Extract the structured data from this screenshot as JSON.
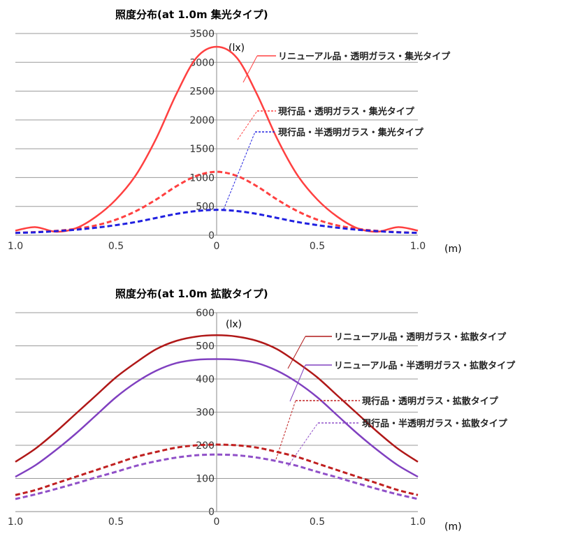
{
  "chart_data": [
    {
      "type": "line",
      "title": "照度分布(at 1.0m 集光タイプ)",
      "y_unit": "(lx)",
      "x_unit": "(m)",
      "x_tick_labels": [
        "1.0",
        "0.5",
        "0",
        "0.5",
        "1.0"
      ],
      "y_tick_labels": [
        "0",
        "500",
        "1000",
        "1500",
        "2000",
        "2500",
        "3000",
        "3500"
      ],
      "ylim": [
        0,
        3500
      ],
      "xlim": [
        -1.0,
        1.0
      ],
      "grid": "horizontal",
      "x": [
        -1.0,
        -0.9,
        -0.8,
        -0.7,
        -0.6,
        -0.5,
        -0.4,
        -0.3,
        -0.2,
        -0.1,
        0.0,
        0.1,
        0.2,
        0.3,
        0.4,
        0.5,
        0.6,
        0.7,
        0.8,
        0.9,
        1.0
      ],
      "series": [
        {
          "name": "リニューアル品・透明ガラス・集光タイプ",
          "color": "#ff4040",
          "dash": "solid",
          "values": [
            80,
            140,
            60,
            120,
            320,
            620,
            1050,
            1680,
            2450,
            3080,
            3270,
            3080,
            2450,
            1680,
            1050,
            620,
            320,
            120,
            60,
            140,
            80
          ]
        },
        {
          "name": "現行品・透明ガラス・集光タイプ",
          "color": "#ff4040",
          "dash": "dashed",
          "values": [
            40,
            55,
            75,
            110,
            170,
            270,
            420,
            620,
            850,
            1030,
            1100,
            1030,
            850,
            620,
            420,
            270,
            170,
            110,
            75,
            55,
            40
          ]
        },
        {
          "name": "現行品・半透明ガラス・集光タイプ",
          "color": "#2020e0",
          "dash": "dashed",
          "values": [
            40,
            50,
            70,
            95,
            130,
            175,
            230,
            300,
            370,
            420,
            440,
            420,
            370,
            300,
            230,
            175,
            130,
            95,
            70,
            50,
            40
          ]
        }
      ]
    },
    {
      "type": "line",
      "title": "照度分布(at 1.0m 拡散タイプ)",
      "y_unit": "(lx)",
      "x_unit": "(m)",
      "x_tick_labels": [
        "1.0",
        "0.5",
        "0",
        "0.5",
        "1.0"
      ],
      "y_tick_labels": [
        "0",
        "100",
        "200",
        "300",
        "400",
        "500",
        "600"
      ],
      "ylim": [
        0,
        600
      ],
      "xlim": [
        -1.0,
        1.0
      ],
      "grid": "horizontal",
      "x": [
        -1.0,
        -0.9,
        -0.8,
        -0.7,
        -0.6,
        -0.5,
        -0.4,
        -0.3,
        -0.2,
        -0.1,
        0.0,
        0.1,
        0.2,
        0.3,
        0.4,
        0.5,
        0.6,
        0.7,
        0.8,
        0.9,
        1.0
      ],
      "series": [
        {
          "name": "リニューアル品・透明ガラス・拡散タイプ",
          "color": "#b01818",
          "dash": "solid",
          "values": [
            150,
            190,
            240,
            295,
            350,
            405,
            450,
            490,
            515,
            528,
            532,
            528,
            515,
            490,
            450,
            405,
            350,
            295,
            240,
            190,
            150
          ]
        },
        {
          "name": "リニューアル品・半透明ガラス・拡散タイプ",
          "color": "#8040c0",
          "dash": "solid",
          "values": [
            105,
            140,
            185,
            235,
            290,
            345,
            390,
            425,
            448,
            458,
            460,
            458,
            448,
            425,
            390,
            345,
            290,
            235,
            185,
            140,
            105
          ]
        },
        {
          "name": "現行品・透明ガラス・拡散タイプ",
          "color": "#c02020",
          "dash": "dashed",
          "values": [
            50,
            65,
            85,
            105,
            125,
            145,
            165,
            180,
            193,
            200,
            202,
            200,
            193,
            180,
            165,
            145,
            125,
            105,
            85,
            65,
            50
          ]
        },
        {
          "name": "現行品・半透明ガラス・拡散タイプ",
          "color": "#9050c8",
          "dash": "dashed",
          "values": [
            38,
            52,
            68,
            85,
            103,
            120,
            138,
            152,
            163,
            170,
            172,
            170,
            163,
            152,
            138,
            120,
            103,
            85,
            68,
            52,
            38
          ]
        }
      ]
    }
  ]
}
